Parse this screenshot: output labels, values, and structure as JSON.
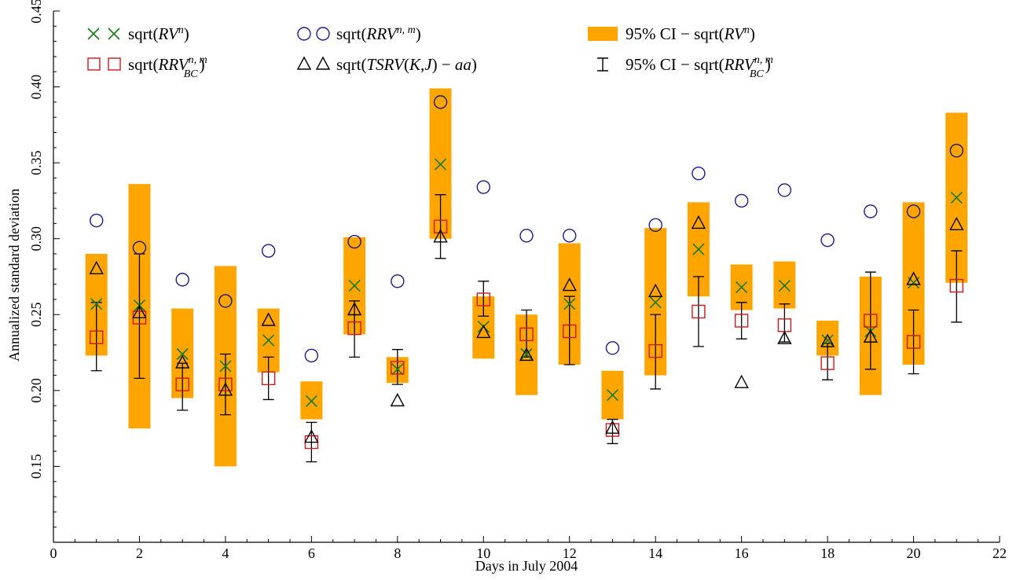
{
  "chart_data": {
    "type": "scatter",
    "title": "",
    "xlabel": "Days in July 2004",
    "ylabel": "Annualized standard deviation",
    "xlim": [
      0,
      22
    ],
    "ylim": [
      0.1,
      0.45
    ],
    "x_ticks": [
      "0",
      "2",
      "4",
      "6",
      "8",
      "10",
      "12",
      "14",
      "16",
      "18",
      "20",
      "22"
    ],
    "y_ticks": [
      "0.15",
      "0.20",
      "0.25",
      "0.30",
      "0.35",
      "0.40",
      "0.45"
    ],
    "legend_position": "top-left",
    "legend": [
      "sqrt(RV^n)",
      "sqrt(RRV^{n,m})",
      "95% CI − sqrt(RV^n)",
      "sqrt(RRV_BC^{n,m})",
      "sqrt(TSRV(K,J) − aa)",
      "95% CI − sqrt(RRV_BC^{n,m})"
    ],
    "days": [
      1,
      2,
      3,
      4,
      5,
      6,
      7,
      8,
      9,
      10,
      11,
      12,
      13,
      14,
      15,
      16,
      17,
      18,
      19,
      20,
      21
    ],
    "series": [
      {
        "key": "rv",
        "marker": "x",
        "color": "#1a7a1a",
        "values": [
          0.257,
          0.256,
          0.224,
          0.216,
          0.233,
          0.193,
          0.269,
          0.214,
          0.349,
          0.242,
          0.224,
          0.257,
          0.197,
          0.258,
          0.293,
          0.268,
          0.269,
          0.233,
          0.239,
          0.271,
          0.327
        ]
      },
      {
        "key": "rrv",
        "marker": "circle",
        "color": "#1a1a8c",
        "values": [
          0.312,
          0.294,
          0.273,
          0.259,
          0.292,
          0.223,
          0.298,
          0.272,
          0.39,
          0.334,
          0.302,
          0.302,
          0.228,
          0.309,
          0.343,
          0.325,
          0.332,
          0.299,
          0.318,
          0.318,
          0.358
        ]
      },
      {
        "key": "rrv_bc",
        "marker": "square",
        "color": "#cc1a1a",
        "values": [
          0.235,
          0.248,
          0.204,
          0.204,
          0.208,
          0.166,
          0.241,
          0.215,
          0.308,
          0.26,
          0.237,
          0.239,
          0.174,
          0.226,
          0.252,
          0.246,
          0.243,
          0.218,
          0.246,
          0.232,
          0.269
        ]
      },
      {
        "key": "tsrv",
        "marker": "triangle",
        "color": "#000000",
        "values": [
          0.28,
          0.251,
          0.218,
          0.2,
          0.246,
          0.169,
          0.253,
          0.193,
          0.301,
          0.238,
          0.223,
          0.269,
          0.175,
          0.265,
          0.31,
          0.205,
          0.234,
          0.232,
          0.235,
          0.273,
          0.309
        ]
      }
    ],
    "ci_rv": {
      "color": "#ffa500",
      "low": [
        0.223,
        0.175,
        0.195,
        0.15,
        0.212,
        0.181,
        0.237,
        0.205,
        0.3,
        0.221,
        0.197,
        0.217,
        0.181,
        0.21,
        0.262,
        0.253,
        0.254,
        0.223,
        0.197,
        0.217,
        0.271
      ],
      "high": [
        0.29,
        0.336,
        0.254,
        0.282,
        0.254,
        0.206,
        0.301,
        0.222,
        0.399,
        0.262,
        0.25,
        0.297,
        0.213,
        0.307,
        0.324,
        0.283,
        0.285,
        0.246,
        0.275,
        0.324,
        0.383
      ]
    },
    "ci_rrv_bc": {
      "color": "#000000",
      "low": [
        0.213,
        0.208,
        0.187,
        0.184,
        0.194,
        0.153,
        0.222,
        0.204,
        0.287,
        0.249,
        0.222,
        0.217,
        0.165,
        0.201,
        0.229,
        0.234,
        0.232,
        0.207,
        0.214,
        0.211,
        0.245
      ],
      "high": [
        0.258,
        0.29,
        0.218,
        0.224,
        0.222,
        0.179,
        0.259,
        0.227,
        0.329,
        0.272,
        0.253,
        0.262,
        0.181,
        0.25,
        0.275,
        0.258,
        0.257,
        0.231,
        0.278,
        0.253,
        0.292
      ]
    }
  }
}
